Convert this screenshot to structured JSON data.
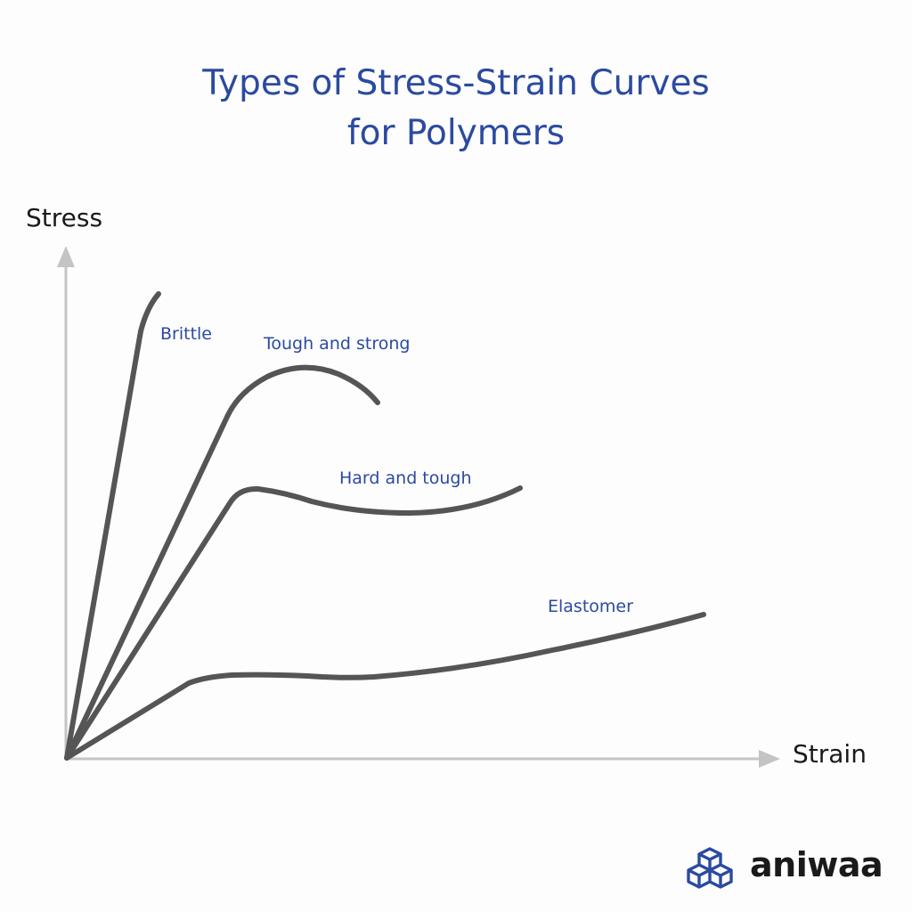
{
  "title": {
    "line1": "Types of Stress-Strain Curves",
    "line2": "for Polymers"
  },
  "axes": {
    "y_label": "Stress",
    "x_label": "Strain"
  },
  "curves": [
    {
      "name": "Brittle"
    },
    {
      "name": "Tough and strong"
    },
    {
      "name": "Hard and tough"
    },
    {
      "name": "Elastomer"
    }
  ],
  "brand": {
    "name": "aniwaa",
    "logo_icon": "isometric-cubes-icon"
  },
  "colors": {
    "title": "#2b4aa0",
    "curve_labels": "#2b4aa0",
    "curves": "#555555",
    "axes": "#bdbdbd",
    "logo": "#2b4aa0"
  }
}
